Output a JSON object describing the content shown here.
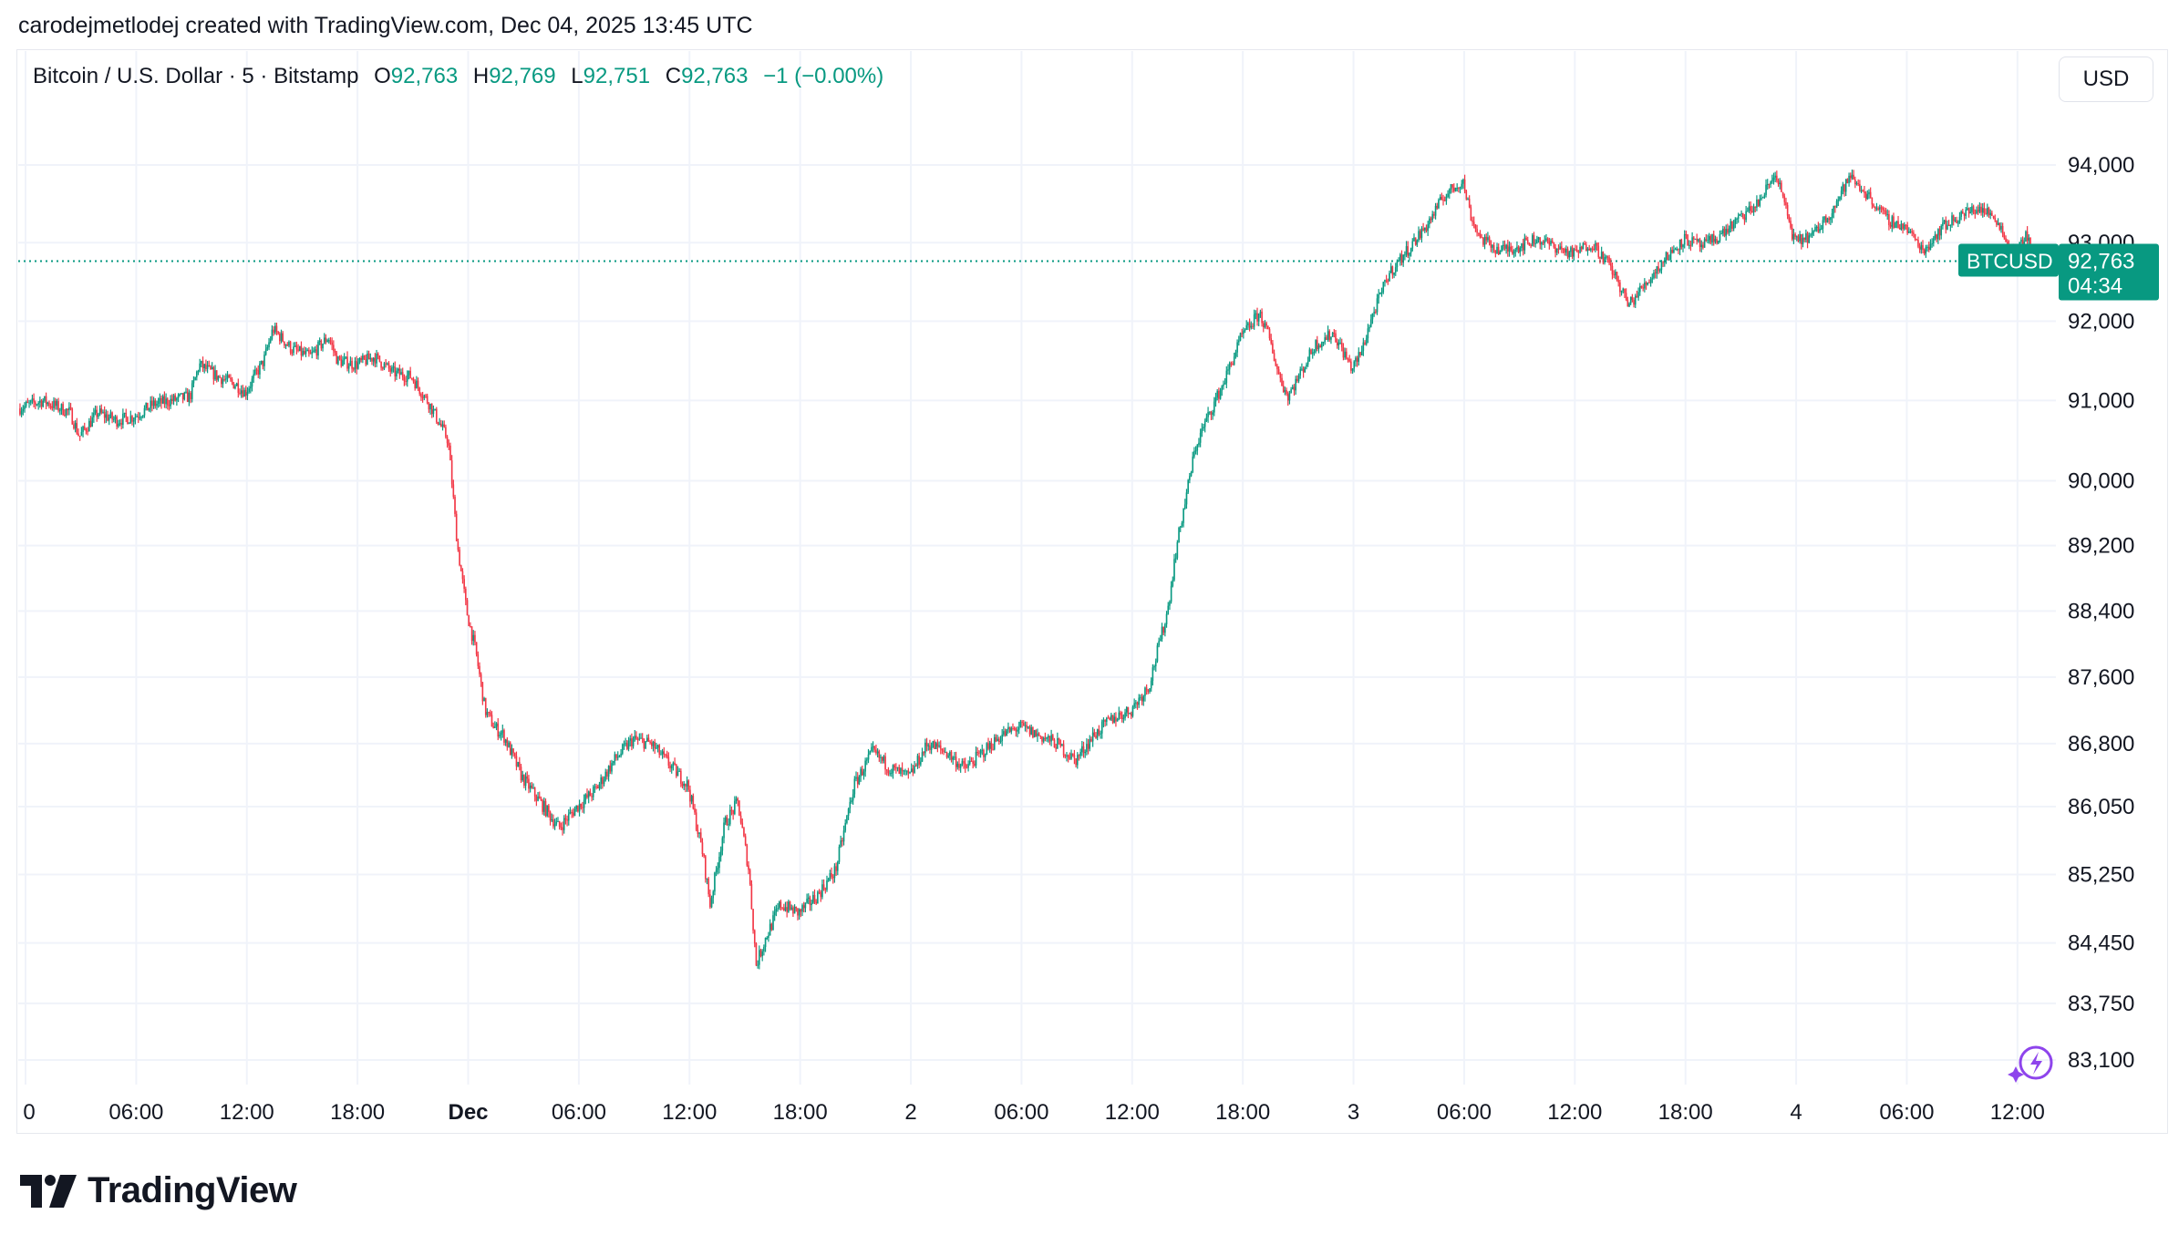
{
  "caption": "carodejmetlodej created with TradingView.com, Dec 04, 2025 13:45 UTC",
  "legend": {
    "symbol": "Bitcoin / U.S. Dollar · 5 · Bitstamp",
    "open_label": "O",
    "open": "92,763",
    "high_label": "H",
    "high": "92,769",
    "low_label": "L",
    "low": "92,751",
    "close_label": "C",
    "close": "92,763",
    "change": "−1 (−0.00%)"
  },
  "currency_button": "USD",
  "price_tag": {
    "symbol": "BTCUSD",
    "price": "92,763",
    "countdown": "04:34"
  },
  "brand": {
    "name": "TradingView",
    "logo_icon": "tradingview-logo-icon"
  },
  "colors": {
    "up": "#089981",
    "down": "#f23645",
    "grid": "#f0f3fa",
    "text": "#131722",
    "tag_bg": "#089981"
  },
  "chart_data": {
    "type": "candlestick",
    "symbol": "BTCUSD",
    "interval": "5",
    "exchange": "Bitstamp",
    "last_price": 92763,
    "y_scale": "log",
    "y_ticks": [
      94000,
      93000,
      92000,
      91000,
      90000,
      89200,
      88400,
      87600,
      86800,
      86050,
      85250,
      84450,
      83750,
      83100
    ],
    "y_tick_labels": [
      "94,000",
      "93,000",
      "92,000",
      "91,000",
      "90,000",
      "89,200",
      "88,400",
      "87,600",
      "86,800",
      "86,050",
      "85,250",
      "84,450",
      "83,750",
      "83,100"
    ],
    "x_tick_labels": [
      "0",
      "06:00",
      "12:00",
      "18:00",
      "Dec",
      "06:00",
      "12:00",
      "18:00",
      "2",
      "06:00",
      "12:00",
      "18:00",
      "3",
      "06:00",
      "12:00",
      "18:00",
      "4",
      "06:00",
      "12:00"
    ],
    "x_tick_hours": [
      0,
      6,
      12,
      18,
      24,
      30,
      36,
      42,
      48,
      54,
      60,
      66,
      72,
      78,
      84,
      90,
      96,
      102,
      108
    ],
    "bold_x_ticks": [
      "Dec"
    ],
    "x_unit": "hours since Nov 30 00:00 UTC",
    "path": [
      [
        -0.3,
        90900
      ],
      [
        1,
        91000
      ],
      [
        2.5,
        90850
      ],
      [
        3,
        90550
      ],
      [
        4,
        90850
      ],
      [
        5,
        90750
      ],
      [
        6,
        90800
      ],
      [
        7,
        90950
      ],
      [
        8,
        91000
      ],
      [
        9,
        91050
      ],
      [
        9.5,
        91450
      ],
      [
        10.5,
        91300
      ],
      [
        11.5,
        91200
      ],
      [
        12,
        91100
      ],
      [
        13,
        91500
      ],
      [
        13.5,
        91900
      ],
      [
        14.5,
        91650
      ],
      [
        15.5,
        91550
      ],
      [
        16.5,
        91800
      ],
      [
        17,
        91500
      ],
      [
        18,
        91450
      ],
      [
        19,
        91550
      ],
      [
        20,
        91350
      ],
      [
        21,
        91300
      ],
      [
        22,
        90950
      ],
      [
        23,
        90500
      ],
      [
        23.5,
        89200
      ],
      [
        24,
        88400
      ],
      [
        24.5,
        87900
      ],
      [
        25,
        87200
      ],
      [
        25.5,
        87000
      ],
      [
        26,
        86900
      ],
      [
        27,
        86400
      ],
      [
        28,
        86100
      ],
      [
        29,
        85800
      ],
      [
        30,
        86050
      ],
      [
        31,
        86250
      ],
      [
        32,
        86600
      ],
      [
        33,
        86850
      ],
      [
        34,
        86800
      ],
      [
        35,
        86550
      ],
      [
        36,
        86300
      ],
      [
        36.8,
        85500
      ],
      [
        37.2,
        84900
      ],
      [
        38,
        85850
      ],
      [
        38.7,
        86100
      ],
      [
        39.3,
        85300
      ],
      [
        39.7,
        84200
      ],
      [
        40.2,
        84500
      ],
      [
        41,
        84900
      ],
      [
        42,
        84800
      ],
      [
        43,
        85000
      ],
      [
        44,
        85300
      ],
      [
        45,
        86300
      ],
      [
        46,
        86700
      ],
      [
        47,
        86500
      ],
      [
        48,
        86400
      ],
      [
        49,
        86800
      ],
      [
        50,
        86700
      ],
      [
        51,
        86500
      ],
      [
        52,
        86700
      ],
      [
        53,
        86900
      ],
      [
        54,
        87000
      ],
      [
        55,
        86900
      ],
      [
        56,
        86800
      ],
      [
        57,
        86600
      ],
      [
        58,
        86900
      ],
      [
        59,
        87100
      ],
      [
        60,
        87200
      ],
      [
        61,
        87500
      ],
      [
        62,
        88400
      ],
      [
        62.5,
        89200
      ],
      [
        63,
        89800
      ],
      [
        63.5,
        90400
      ],
      [
        64,
        90700
      ],
      [
        65,
        91200
      ],
      [
        66,
        91800
      ],
      [
        67,
        92100
      ],
      [
        67.5,
        91800
      ],
      [
        68,
        91350
      ],
      [
        68.5,
        91050
      ],
      [
        69,
        91250
      ],
      [
        70,
        91700
      ],
      [
        71,
        91850
      ],
      [
        72,
        91400
      ],
      [
        72.5,
        91600
      ],
      [
        73,
        92000
      ],
      [
        74,
        92600
      ],
      [
        75,
        92900
      ],
      [
        76,
        93200
      ],
      [
        77,
        93600
      ],
      [
        78,
        93800
      ],
      [
        78.5,
        93300
      ],
      [
        79,
        93050
      ],
      [
        80,
        92900
      ],
      [
        81,
        92950
      ],
      [
        82,
        93050
      ],
      [
        83,
        92950
      ],
      [
        84,
        92850
      ],
      [
        85,
        93000
      ],
      [
        86,
        92700
      ],
      [
        87,
        92200
      ],
      [
        88,
        92500
      ],
      [
        89,
        92800
      ],
      [
        90,
        93050
      ],
      [
        91,
        92950
      ],
      [
        92,
        93100
      ],
      [
        93,
        93300
      ],
      [
        94,
        93500
      ],
      [
        95,
        93900
      ],
      [
        96,
        93000
      ],
      [
        97,
        93100
      ],
      [
        98,
        93400
      ],
      [
        99,
        93850
      ],
      [
        100,
        93600
      ],
      [
        101,
        93300
      ],
      [
        102,
        93200
      ],
      [
        103,
        92900
      ],
      [
        104,
        93200
      ],
      [
        105,
        93350
      ],
      [
        106,
        93450
      ],
      [
        107,
        93300
      ],
      [
        107.5,
        93000
      ],
      [
        108,
        92850
      ],
      [
        108.6,
        93100
      ],
      [
        109,
        92763
      ]
    ]
  }
}
